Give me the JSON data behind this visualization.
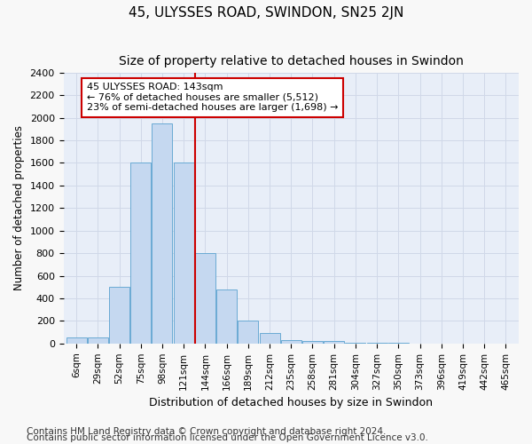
{
  "title": "45, ULYSSES ROAD, SWINDON, SN25 2JN",
  "subtitle": "Size of property relative to detached houses in Swindon",
  "xlabel": "Distribution of detached houses by size in Swindon",
  "ylabel": "Number of detached properties",
  "bin_labels": [
    "6sqm",
    "29sqm",
    "52sqm",
    "75sqm",
    "98sqm",
    "121sqm",
    "144sqm",
    "166sqm",
    "189sqm",
    "212sqm",
    "235sqm",
    "258sqm",
    "281sqm",
    "304sqm",
    "327sqm",
    "350sqm",
    "373sqm",
    "396sqm",
    "419sqm",
    "442sqm",
    "465sqm"
  ],
  "bar_values": [
    50,
    50,
    500,
    1600,
    1950,
    1600,
    800,
    475,
    200,
    90,
    30,
    25,
    20,
    5,
    5,
    5,
    0,
    0,
    0,
    0,
    0
  ],
  "bar_color": "#c5d8f0",
  "bar_edge_color": "#6aaad4",
  "vline_x": 5.52,
  "vline_color": "#cc0000",
  "ylim": [
    0,
    2400
  ],
  "yticks": [
    0,
    200,
    400,
    600,
    800,
    1000,
    1200,
    1400,
    1600,
    1800,
    2000,
    2200,
    2400
  ],
  "annotation_title": "45 ULYSSES ROAD: 143sqm",
  "annotation_line1": "← 76% of detached houses are smaller (5,512)",
  "annotation_line2": "23% of semi-detached houses are larger (1,698) →",
  "annotation_box_color": "#ffffff",
  "annotation_box_edge": "#cc0000",
  "footnote1": "Contains HM Land Registry data © Crown copyright and database right 2024.",
  "footnote2": "Contains public sector information licensed under the Open Government Licence v3.0.",
  "grid_color": "#d0d8e8",
  "plot_bg_color": "#e8eef8",
  "fig_bg_color": "#f8f8f8",
  "title_fontsize": 11,
  "subtitle_fontsize": 10,
  "footnote_fontsize": 7.5
}
